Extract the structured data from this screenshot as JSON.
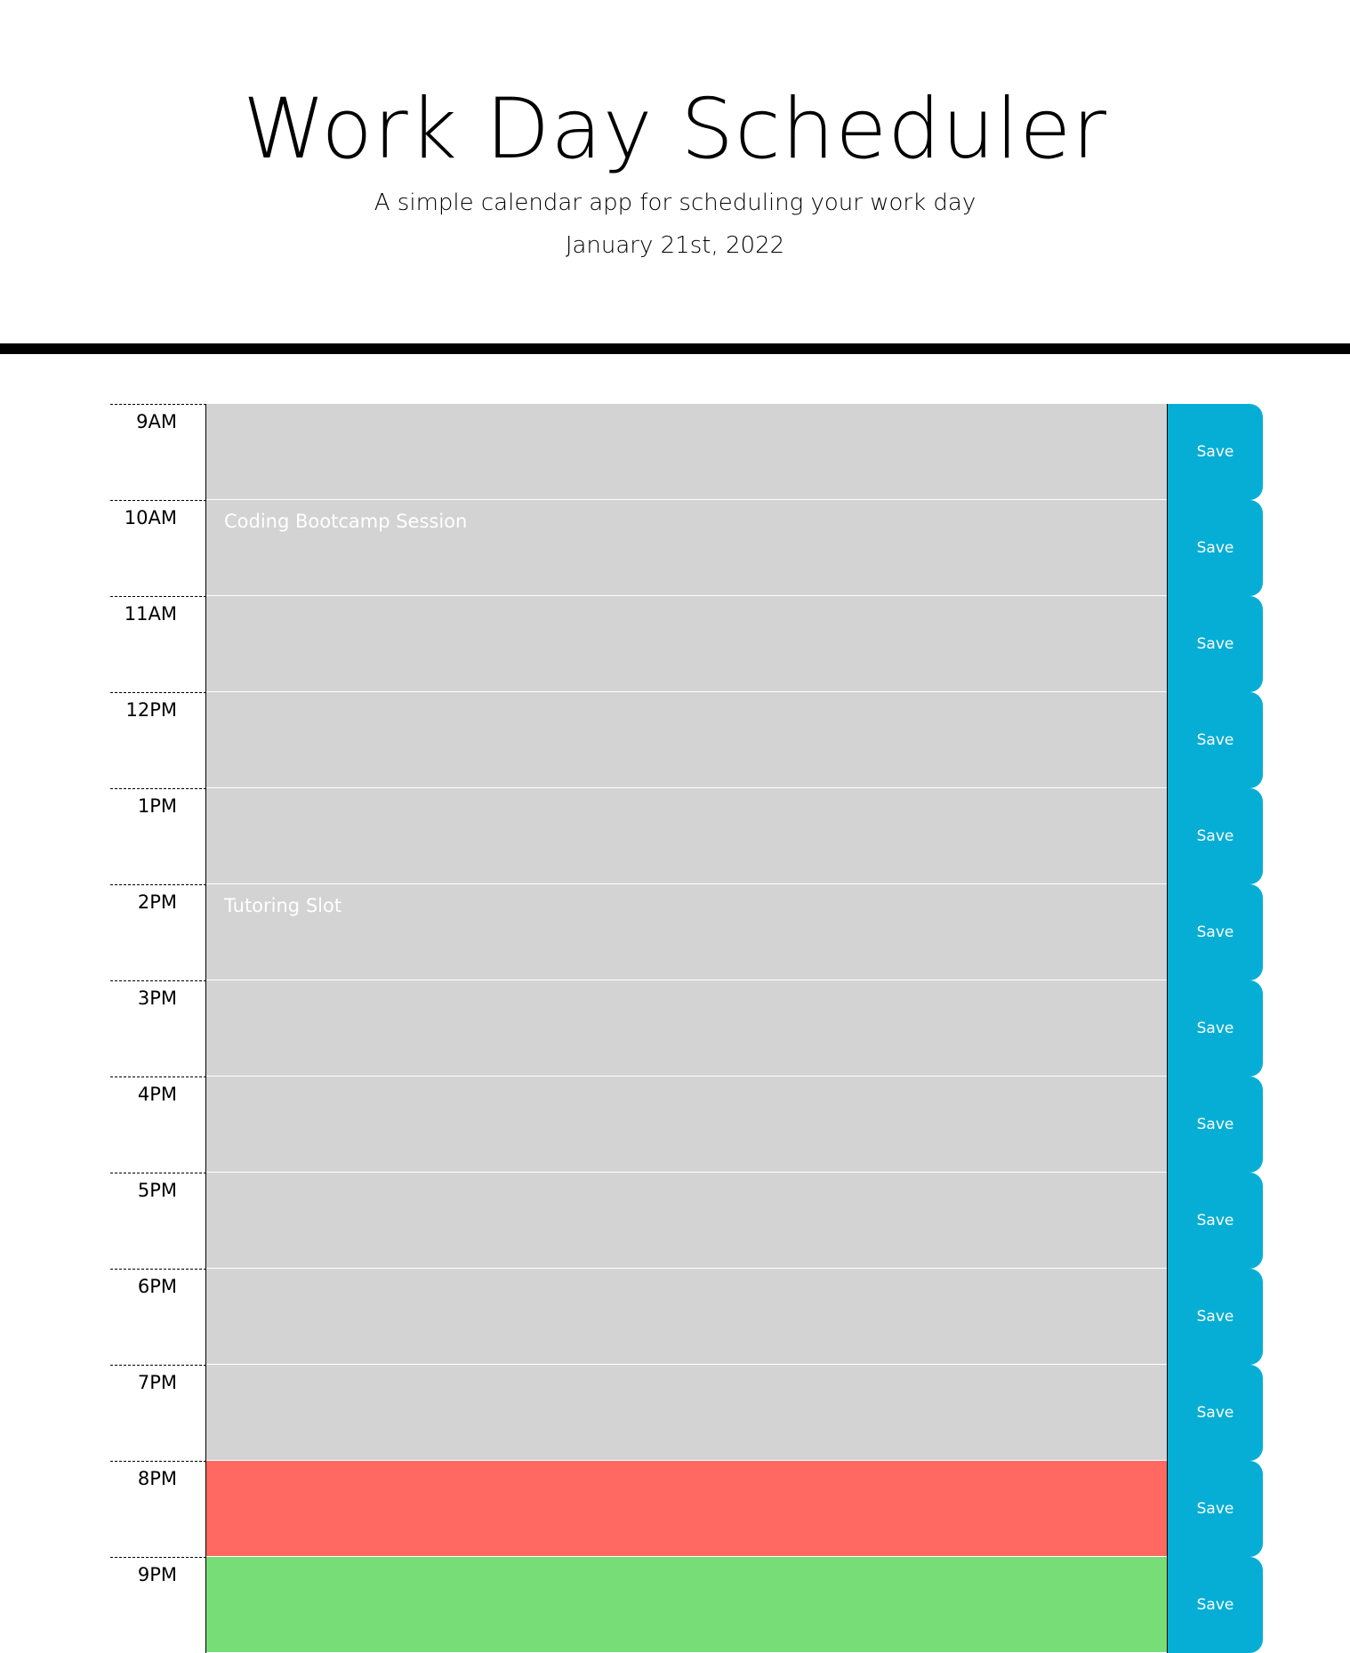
{
  "header": {
    "title": "Work Day Scheduler",
    "lead": "A simple calendar app for scheduling your work day",
    "current_date": "January 21st, 2022"
  },
  "colors": {
    "past": "#d3d3d3",
    "present": "#ff6961",
    "future": "#77dd77",
    "save_button": "#06aed5"
  },
  "save_label": "Save",
  "time_blocks": [
    {
      "hour": "9AM",
      "text": "",
      "status": "past"
    },
    {
      "hour": "10AM",
      "text": "Coding Bootcamp Session",
      "status": "past"
    },
    {
      "hour": "11AM",
      "text": "",
      "status": "past"
    },
    {
      "hour": "12PM",
      "text": "",
      "status": "past"
    },
    {
      "hour": "1PM",
      "text": "",
      "status": "past"
    },
    {
      "hour": "2PM",
      "text": "Tutoring Slot",
      "status": "past"
    },
    {
      "hour": "3PM",
      "text": "",
      "status": "past"
    },
    {
      "hour": "4PM",
      "text": "",
      "status": "past"
    },
    {
      "hour": "5PM",
      "text": "",
      "status": "past"
    },
    {
      "hour": "6PM",
      "text": "",
      "status": "past"
    },
    {
      "hour": "7PM",
      "text": "",
      "status": "past"
    },
    {
      "hour": "8PM",
      "text": "",
      "status": "present"
    },
    {
      "hour": "9PM",
      "text": "",
      "status": "future"
    }
  ]
}
